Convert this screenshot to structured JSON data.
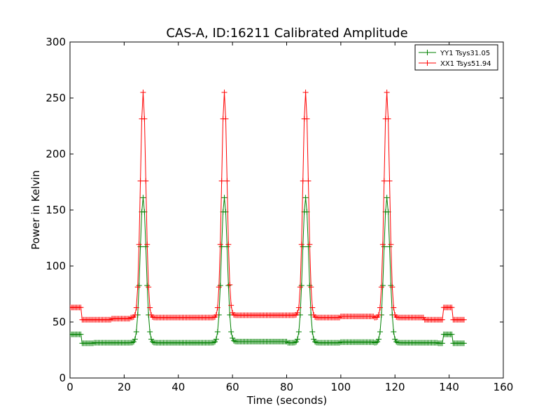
{
  "chart_data": {
    "type": "line",
    "title": "CAS-A, ID:16211 Calibrated Amplitude",
    "xlabel": "Time (seconds)",
    "ylabel": "Power in Kelvin",
    "xlim": [
      0,
      160
    ],
    "ylim": [
      0,
      300
    ],
    "xticks": [
      0,
      20,
      40,
      60,
      80,
      100,
      120,
      140,
      160
    ],
    "yticks": [
      0,
      50,
      100,
      150,
      200,
      250,
      300
    ],
    "grid": false,
    "legend_position": "top-right",
    "marker": "+",
    "sample_interval": 0.5,
    "x_start": 0,
    "x_end": 145.5,
    "series": [
      {
        "name": "YY1 Tsys31.05",
        "color": "#008000",
        "baseline": 31.5,
        "segments": [
          {
            "x": [
              0,
              4
            ],
            "y": 39
          },
          {
            "x": [
              4.5,
              8.5
            ],
            "y": 31
          },
          {
            "x": [
              136,
              137.5
            ],
            "y": 31
          },
          {
            "x": [
              138,
              141
            ],
            "y": 39
          },
          {
            "x": [
              141.5,
              145.5
            ],
            "y": 31
          }
        ],
        "drift": [
          {
            "x": [
              60,
              80
            ],
            "y": 32.5
          },
          {
            "x": [
              100,
              112
            ],
            "y": 32
          }
        ],
        "peaks": [
          {
            "x": 27,
            "y": 161
          },
          {
            "x": 57,
            "y": 161
          },
          {
            "x": 87,
            "y": 161
          },
          {
            "x": 117,
            "y": 161
          }
        ],
        "peak_width": 1.1
      },
      {
        "name": "XX1 Tsys51.94",
        "color": "#ff0000",
        "baseline": 54,
        "segments": [
          {
            "x": [
              0,
              4
            ],
            "y": 63
          },
          {
            "x": [
              4.5,
              15
            ],
            "y": 52
          },
          {
            "x": [
              15.5,
              22
            ],
            "y": 53
          },
          {
            "x": [
              131,
              135.5
            ],
            "y": 52
          },
          {
            "x": [
              136,
              137.5
            ],
            "y": 52
          },
          {
            "x": [
              138,
              141
            ],
            "y": 63
          },
          {
            "x": [
              141.5,
              145.5
            ],
            "y": 52
          }
        ],
        "drift": [
          {
            "x": [
              59,
              84
            ],
            "y": 56
          },
          {
            "x": [
              100,
              112
            ],
            "y": 55
          }
        ],
        "peaks": [
          {
            "x": 27,
            "y": 255
          },
          {
            "x": 57,
            "y": 255
          },
          {
            "x": 87,
            "y": 255
          },
          {
            "x": 117,
            "y": 255
          }
        ],
        "peak_width": 1.0
      }
    ]
  }
}
